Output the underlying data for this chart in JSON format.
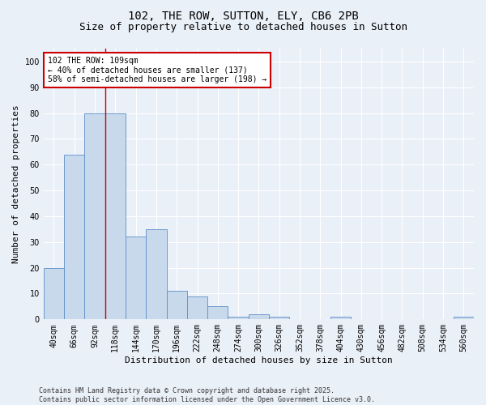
{
  "title1": "102, THE ROW, SUTTON, ELY, CB6 2PB",
  "title2": "Size of property relative to detached houses in Sutton",
  "xlabel": "Distribution of detached houses by size in Sutton",
  "ylabel": "Number of detached properties",
  "categories": [
    "40sqm",
    "66sqm",
    "92sqm",
    "118sqm",
    "144sqm",
    "170sqm",
    "196sqm",
    "222sqm",
    "248sqm",
    "274sqm",
    "300sqm",
    "326sqm",
    "352sqm",
    "378sqm",
    "404sqm",
    "430sqm",
    "456sqm",
    "482sqm",
    "508sqm",
    "534sqm",
    "560sqm"
  ],
  "values": [
    20,
    64,
    80,
    80,
    32,
    35,
    11,
    9,
    5,
    1,
    2,
    1,
    0,
    0,
    1,
    0,
    0,
    0,
    0,
    0,
    1
  ],
  "bar_color": "#c9d9ec",
  "bar_edge_color": "#5b8fc9",
  "annotation_text": "102 THE ROW: 109sqm\n← 40% of detached houses are smaller (137)\n58% of semi-detached houses are larger (198) →",
  "annotation_box_color": "#ffffff",
  "annotation_box_edge_color": "#cc0000",
  "red_line_x": 2.5,
  "ylim": [
    0,
    105
  ],
  "yticks": [
    0,
    10,
    20,
    30,
    40,
    50,
    60,
    70,
    80,
    90,
    100
  ],
  "bg_color": "#eaf0f8",
  "grid_color": "#ffffff",
  "footer": "Contains HM Land Registry data © Crown copyright and database right 2025.\nContains public sector information licensed under the Open Government Licence v3.0.",
  "title1_fontsize": 10,
  "title2_fontsize": 9,
  "xlabel_fontsize": 8,
  "ylabel_fontsize": 8,
  "tick_fontsize": 7,
  "annot_fontsize": 7,
  "footer_fontsize": 6
}
